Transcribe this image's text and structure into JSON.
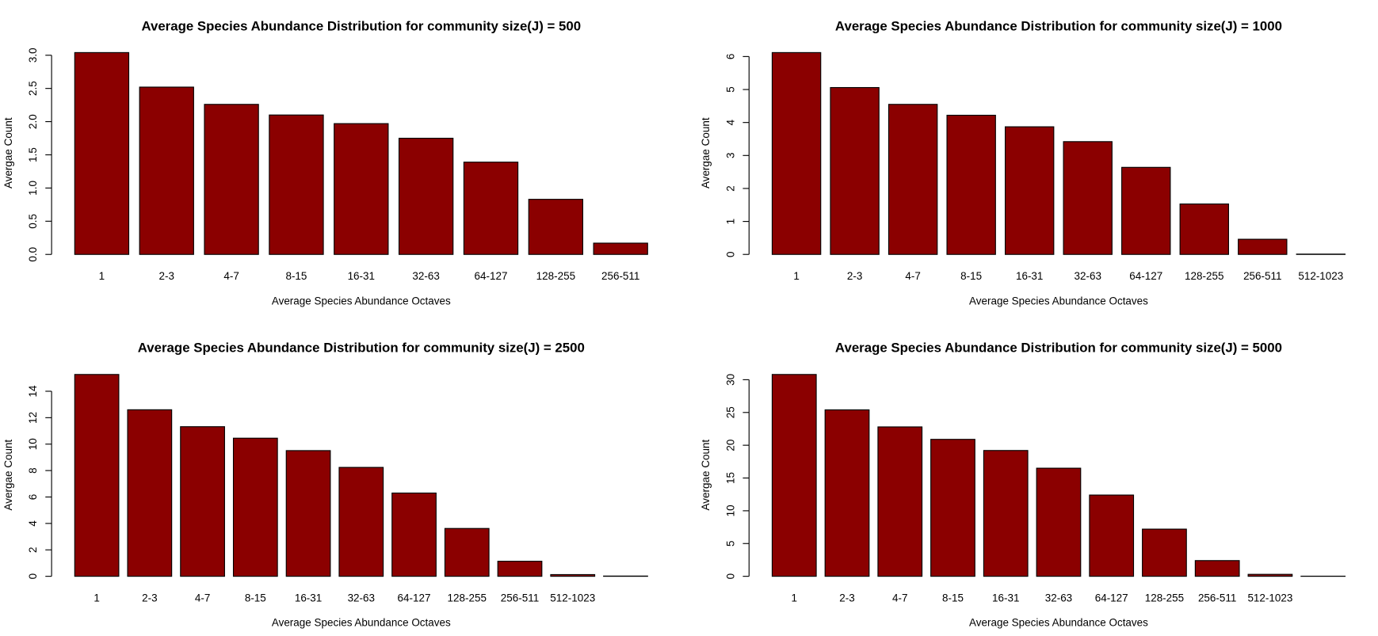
{
  "chart_data": [
    {
      "type": "bar",
      "title": "Average Species Abundance Distribution for community size(J) = 500",
      "x_label": "Average Species Abundance Octaves",
      "y_label": "Avergae Count",
      "color": "#8b0000",
      "categories": [
        "1",
        "2-3",
        "4-7",
        "8-15",
        "16-31",
        "32-63",
        "64-127",
        "128-255",
        "256-511"
      ],
      "values": [
        3.04,
        2.52,
        2.26,
        2.1,
        1.97,
        1.75,
        1.39,
        0.83,
        0.17
      ],
      "ylim": [
        0,
        3.04
      ],
      "yticks": [
        {
          "value": 0,
          "label": "0.0"
        },
        0.5,
        {
          "value": 1,
          "label": "1.0"
        },
        1.5,
        {
          "value": 2,
          "label": "2.0"
        },
        2.5,
        {
          "value": 3,
          "label": "3.0"
        }
      ]
    },
    {
      "type": "bar",
      "title": "Average Species Abundance Distribution for community size(J) = 1000",
      "x_label": "Average Species Abundance Octaves",
      "y_label": "Avergae Count",
      "color": "#8b0000",
      "categories": [
        "1",
        "2-3",
        "4-7",
        "8-15",
        "16-31",
        "32-63",
        "64-127",
        "128-255",
        "256-511",
        "512-1023"
      ],
      "values": [
        6.12,
        5.06,
        4.55,
        4.22,
        3.87,
        3.42,
        2.64,
        1.53,
        0.46,
        0.01
      ],
      "ylim": [
        0,
        6.12
      ],
      "yticks": [
        0,
        1,
        2,
        3,
        4,
        5,
        6
      ]
    },
    {
      "type": "bar",
      "title": "Average Species Abundance Distribution for community size(J) = 2500",
      "x_label": "Average Species Abundance Octaves",
      "y_label": "Avergae Count",
      "color": "#8b0000",
      "categories": [
        "1",
        "2-3",
        "4-7",
        "8-15",
        "16-31",
        "32-63",
        "64-127",
        "128-255",
        "256-511",
        "512-1023",
        null
      ],
      "values": [
        15.27,
        12.6,
        11.32,
        10.45,
        9.51,
        8.24,
        6.3,
        3.62,
        1.14,
        0.13,
        0.02
      ],
      "ylim": [
        0,
        15.27
      ],
      "yticks": [
        0,
        2,
        4,
        6,
        8,
        10,
        12,
        14
      ]
    },
    {
      "type": "bar",
      "title": "Average Species Abundance Distribution for community size(J) = 5000",
      "x_label": "Average Species Abundance Octaves",
      "y_label": "Avergae Count",
      "color": "#8b0000",
      "categories": [
        "1",
        "2-3",
        "4-7",
        "8-15",
        "16-31",
        "32-63",
        "64-127",
        "128-255",
        "256-511",
        "512-1023",
        null
      ],
      "values": [
        30.8,
        25.4,
        22.8,
        20.9,
        19.2,
        16.5,
        12.4,
        7.2,
        2.4,
        0.3,
        0.02
      ],
      "ylim": [
        0,
        30.8
      ],
      "yticks": [
        0,
        5,
        10,
        15,
        20,
        25,
        30
      ]
    }
  ]
}
